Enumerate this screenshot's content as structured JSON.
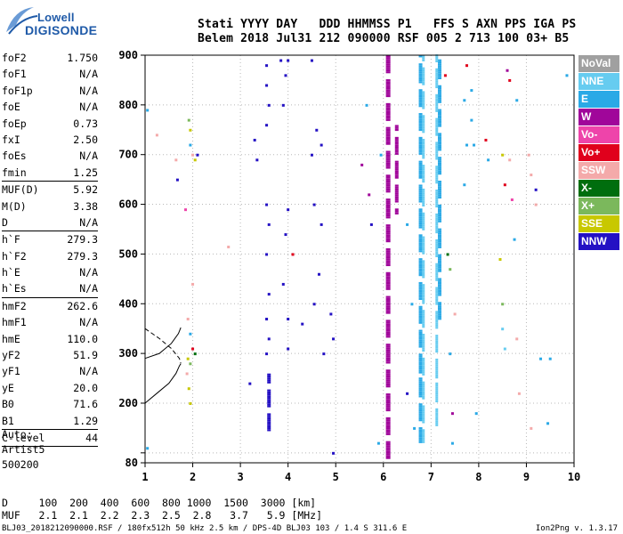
{
  "header": {
    "line1": "Stati YYYY DAY   DDD HHMMSS P1   FFS S AXN PPS IGA PS",
    "line2": "Belem 2018 Jul31 212 090000 RSF 005 2 713 100 03+ B5"
  },
  "logo": {
    "line1": "Lowell",
    "line2": "DIGISONDE"
  },
  "params": [
    {
      "label": "foF2",
      "value": "1.750"
    },
    {
      "label": "foF1",
      "value": "N/A"
    },
    {
      "label": "foF1p",
      "value": "N/A"
    },
    {
      "label": "foE",
      "value": "N/A"
    },
    {
      "label": "foEp",
      "value": "0.73"
    },
    {
      "label": "fxI",
      "value": "2.50"
    },
    {
      "label": "foEs",
      "value": "N/A"
    },
    {
      "label": "fmin",
      "value": "1.25",
      "sep": true
    },
    {
      "label": "MUF(D)",
      "value": "5.92"
    },
    {
      "label": "M(D)",
      "value": "3.38"
    },
    {
      "label": "D",
      "value": "N/A",
      "sep": true
    },
    {
      "label": "h`F",
      "value": "279.3"
    },
    {
      "label": "h`F2",
      "value": "279.3"
    },
    {
      "label": "h`E",
      "value": "N/A"
    },
    {
      "label": "h`Es",
      "value": "N/A",
      "sep": true
    },
    {
      "label": "hmF2",
      "value": "262.6"
    },
    {
      "label": "hmF1",
      "value": "N/A"
    },
    {
      "label": "hmE",
      "value": "110.0"
    },
    {
      "label": "yF2",
      "value": "51.9"
    },
    {
      "label": "yF1",
      "value": "N/A"
    },
    {
      "label": "yE",
      "value": "20.0"
    },
    {
      "label": "B0",
      "value": "71.6"
    },
    {
      "label": "B1",
      "value": "1.29",
      "sep": true
    },
    {
      "label": "C-level",
      "value": "44",
      "sep": true
    }
  ],
  "auto": [
    "Auto:",
    "Artist5",
    "500200"
  ],
  "bottom_table": {
    "d_row": "D     100  200  400  600  800 1000  1500  3000 [km]",
    "muf_row": "MUF   2.1  2.1  2.2  2.3  2.5  2.8   3.7   5.9 [MHz]"
  },
  "footer": {
    "file": "BLJ03_2018212090000.RSF / 180fx512h 50 kHz 2.5 km / DPS-4D BLJ03 103 / 1.4 S 311.6 E",
    "version": "Ion2Png v. 1.3.17"
  },
  "legend": [
    {
      "label": "NoVal",
      "color": "#a0a0a0"
    },
    {
      "label": "NNE",
      "color": "#66ccf0"
    },
    {
      "label": "E",
      "color": "#2aa9e6"
    },
    {
      "label": "W",
      "color": "#a0069a"
    },
    {
      "label": "Vo-",
      "color": "#ee44aa"
    },
    {
      "label": "Vo+",
      "color": "#e0001c"
    },
    {
      "label": "SSW",
      "color": "#f4aaaa"
    },
    {
      "label": "X-",
      "color": "#006e0e"
    },
    {
      "label": "X+",
      "color": "#7bb85c"
    },
    {
      "label": "SSE",
      "color": "#c8c800"
    },
    {
      "label": "NNW",
      "color": "#2411c4"
    }
  ],
  "chart_data": {
    "type": "scatter",
    "title": "",
    "xlabel": "",
    "ylabel": "",
    "xlim": [
      1,
      10
    ],
    "ylim": [
      80,
      900
    ],
    "x_ticks": [
      1,
      2,
      3,
      4,
      5,
      6,
      7,
      8,
      9,
      10
    ],
    "y_ticks": [
      80,
      100,
      200,
      300,
      400,
      500,
      600,
      700,
      800,
      900
    ],
    "y_tick_labels": [
      "80",
      "",
      "200",
      "300",
      "400",
      "500",
      "600",
      "700",
      "800",
      "900"
    ],
    "grid": true,
    "legend_position": "right",
    "stripes": [
      {
        "x": 6.1,
        "ymin": 80,
        "ymax": 900,
        "color": "#a0069a",
        "weight": 3
      },
      {
        "x": 6.28,
        "ymin": 580,
        "ymax": 760,
        "color": "#a0069a",
        "weight": 2
      },
      {
        "x": 6.78,
        "ymin": 120,
        "ymax": 900,
        "color": "#2aa9e6",
        "weight": 2
      },
      {
        "x": 6.84,
        "ymin": 120,
        "ymax": 900,
        "color": "#66ccf0",
        "weight": 1
      },
      {
        "x": 7.18,
        "ymin": 360,
        "ymax": 900,
        "color": "#2aa9e6",
        "weight": 2
      },
      {
        "x": 7.12,
        "ymin": 150,
        "ymax": 900,
        "color": "#66ccf0",
        "weight": 1
      },
      {
        "x": 3.6,
        "ymin": 140,
        "ymax": 260,
        "color": "#2411c4",
        "weight": 2
      }
    ],
    "points": [
      {
        "x": 1.05,
        "y": 790,
        "c": "#2aa9e6"
      },
      {
        "x": 1.05,
        "y": 110,
        "c": "#2aa9e6"
      },
      {
        "x": 1.25,
        "y": 740,
        "c": "#f4aaaa"
      },
      {
        "x": 1.65,
        "y": 690,
        "c": "#f4aaaa"
      },
      {
        "x": 1.68,
        "y": 650,
        "c": "#2411c4"
      },
      {
        "x": 1.85,
        "y": 590,
        "c": "#ee44aa"
      },
      {
        "x": 1.92,
        "y": 770,
        "c": "#7bb85c"
      },
      {
        "x": 1.95,
        "y": 750,
        "c": "#c8c800"
      },
      {
        "x": 1.95,
        "y": 720,
        "c": "#2aa9e6"
      },
      {
        "x": 2.0,
        "y": 700,
        "c": "#f4aaaa"
      },
      {
        "x": 2.05,
        "y": 690,
        "c": "#c8c800"
      },
      {
        "x": 2.1,
        "y": 700,
        "c": "#2411c4"
      },
      {
        "x": 1.9,
        "y": 370,
        "c": "#f4aaaa"
      },
      {
        "x": 1.95,
        "y": 340,
        "c": "#2aa9e6"
      },
      {
        "x": 2.0,
        "y": 310,
        "c": "#e0001c"
      },
      {
        "x": 2.05,
        "y": 300,
        "c": "#006e0e"
      },
      {
        "x": 1.9,
        "y": 290,
        "c": "#c8c800"
      },
      {
        "x": 1.95,
        "y": 280,
        "c": "#7bb85c"
      },
      {
        "x": 1.88,
        "y": 260,
        "c": "#f4aaaa"
      },
      {
        "x": 1.92,
        "y": 230,
        "c": "#c8c800"
      },
      {
        "x": 1.95,
        "y": 200,
        "c": "#c8c800"
      },
      {
        "x": 2.0,
        "y": 440,
        "c": "#f4aaaa"
      },
      {
        "x": 2.75,
        "y": 515,
        "c": "#f4aaaa"
      },
      {
        "x": 3.2,
        "y": 240,
        "c": "#2411c4"
      },
      {
        "x": 3.3,
        "y": 730,
        "c": "#2411c4"
      },
      {
        "x": 3.35,
        "y": 690,
        "c": "#2411c4"
      },
      {
        "x": 3.55,
        "y": 880,
        "c": "#2411c4"
      },
      {
        "x": 3.55,
        "y": 840,
        "c": "#2411c4"
      },
      {
        "x": 3.6,
        "y": 800,
        "c": "#2411c4"
      },
      {
        "x": 3.55,
        "y": 760,
        "c": "#2411c4"
      },
      {
        "x": 3.55,
        "y": 600,
        "c": "#2411c4"
      },
      {
        "x": 3.6,
        "y": 560,
        "c": "#2411c4"
      },
      {
        "x": 3.55,
        "y": 500,
        "c": "#2411c4"
      },
      {
        "x": 3.6,
        "y": 420,
        "c": "#2411c4"
      },
      {
        "x": 3.55,
        "y": 370,
        "c": "#2411c4"
      },
      {
        "x": 3.6,
        "y": 330,
        "c": "#2411c4"
      },
      {
        "x": 3.55,
        "y": 300,
        "c": "#2411c4"
      },
      {
        "x": 3.85,
        "y": 890,
        "c": "#2411c4"
      },
      {
        "x": 3.9,
        "y": 800,
        "c": "#2411c4"
      },
      {
        "x": 3.95,
        "y": 860,
        "c": "#2411c4"
      },
      {
        "x": 4.0,
        "y": 890,
        "c": "#2411c4"
      },
      {
        "x": 4.0,
        "y": 590,
        "c": "#2411c4"
      },
      {
        "x": 3.95,
        "y": 540,
        "c": "#2411c4"
      },
      {
        "x": 3.9,
        "y": 440,
        "c": "#2411c4"
      },
      {
        "x": 4.0,
        "y": 370,
        "c": "#2411c4"
      },
      {
        "x": 4.0,
        "y": 310,
        "c": "#2411c4"
      },
      {
        "x": 4.1,
        "y": 500,
        "c": "#e0001c"
      },
      {
        "x": 4.3,
        "y": 360,
        "c": "#2411c4"
      },
      {
        "x": 4.5,
        "y": 890,
        "c": "#2411c4"
      },
      {
        "x": 4.5,
        "y": 700,
        "c": "#2411c4"
      },
      {
        "x": 4.55,
        "y": 600,
        "c": "#2411c4"
      },
      {
        "x": 4.6,
        "y": 750,
        "c": "#2411c4"
      },
      {
        "x": 4.55,
        "y": 400,
        "c": "#2411c4"
      },
      {
        "x": 4.7,
        "y": 720,
        "c": "#2411c4"
      },
      {
        "x": 4.7,
        "y": 560,
        "c": "#2411c4"
      },
      {
        "x": 4.65,
        "y": 460,
        "c": "#2411c4"
      },
      {
        "x": 4.75,
        "y": 300,
        "c": "#2411c4"
      },
      {
        "x": 4.9,
        "y": 380,
        "c": "#2411c4"
      },
      {
        "x": 4.95,
        "y": 330,
        "c": "#2411c4"
      },
      {
        "x": 4.95,
        "y": 100,
        "c": "#2411c4"
      },
      {
        "x": 5.7,
        "y": 620,
        "c": "#a0069a"
      },
      {
        "x": 5.75,
        "y": 560,
        "c": "#2411c4"
      },
      {
        "x": 5.65,
        "y": 800,
        "c": "#2aa9e6"
      },
      {
        "x": 5.55,
        "y": 680,
        "c": "#a0069a"
      },
      {
        "x": 5.95,
        "y": 700,
        "c": "#2aa9e6"
      },
      {
        "x": 5.9,
        "y": 120,
        "c": "#2aa9e6"
      },
      {
        "x": 6.5,
        "y": 560,
        "c": "#2aa9e6"
      },
      {
        "x": 6.6,
        "y": 400,
        "c": "#2aa9e6"
      },
      {
        "x": 6.5,
        "y": 220,
        "c": "#2411c4"
      },
      {
        "x": 6.65,
        "y": 150,
        "c": "#2aa9e6"
      },
      {
        "x": 7.3,
        "y": 860,
        "c": "#e0001c"
      },
      {
        "x": 7.35,
        "y": 500,
        "c": "#006e0e"
      },
      {
        "x": 7.4,
        "y": 470,
        "c": "#7bb85c"
      },
      {
        "x": 7.5,
        "y": 380,
        "c": "#f4aaaa"
      },
      {
        "x": 7.4,
        "y": 300,
        "c": "#2aa9e6"
      },
      {
        "x": 7.45,
        "y": 180,
        "c": "#a0069a"
      },
      {
        "x": 7.45,
        "y": 120,
        "c": "#2aa9e6"
      },
      {
        "x": 7.7,
        "y": 810,
        "c": "#2aa9e6"
      },
      {
        "x": 7.75,
        "y": 880,
        "c": "#e0001c"
      },
      {
        "x": 7.75,
        "y": 720,
        "c": "#2aa9e6"
      },
      {
        "x": 7.7,
        "y": 640,
        "c": "#2aa9e6"
      },
      {
        "x": 7.85,
        "y": 830,
        "c": "#2aa9e6"
      },
      {
        "x": 7.85,
        "y": 770,
        "c": "#2aa9e6"
      },
      {
        "x": 7.9,
        "y": 720,
        "c": "#2aa9e6"
      },
      {
        "x": 7.95,
        "y": 180,
        "c": "#2aa9e6"
      },
      {
        "x": 8.15,
        "y": 730,
        "c": "#e0001c"
      },
      {
        "x": 8.2,
        "y": 690,
        "c": "#2aa9e6"
      },
      {
        "x": 8.45,
        "y": 490,
        "c": "#c8c800"
      },
      {
        "x": 8.5,
        "y": 400,
        "c": "#7bb85c"
      },
      {
        "x": 8.5,
        "y": 350,
        "c": "#66ccf0"
      },
      {
        "x": 8.55,
        "y": 310,
        "c": "#66ccf0"
      },
      {
        "x": 8.5,
        "y": 700,
        "c": "#c8c800"
      },
      {
        "x": 8.55,
        "y": 640,
        "c": "#e0001c"
      },
      {
        "x": 8.6,
        "y": 870,
        "c": "#a0069a"
      },
      {
        "x": 8.65,
        "y": 850,
        "c": "#e0001c"
      },
      {
        "x": 8.65,
        "y": 690,
        "c": "#f4aaaa"
      },
      {
        "x": 8.7,
        "y": 610,
        "c": "#ee44aa"
      },
      {
        "x": 8.75,
        "y": 530,
        "c": "#2aa9e6"
      },
      {
        "x": 8.8,
        "y": 810,
        "c": "#2aa9e6"
      },
      {
        "x": 8.8,
        "y": 330,
        "c": "#f4aaaa"
      },
      {
        "x": 8.85,
        "y": 220,
        "c": "#f4aaaa"
      },
      {
        "x": 9.05,
        "y": 700,
        "c": "#f4aaaa"
      },
      {
        "x": 9.1,
        "y": 660,
        "c": "#f4aaaa"
      },
      {
        "x": 9.2,
        "y": 600,
        "c": "#f4aaaa"
      },
      {
        "x": 9.2,
        "y": 630,
        "c": "#2411c4"
      },
      {
        "x": 9.1,
        "y": 150,
        "c": "#f4aaaa"
      },
      {
        "x": 9.3,
        "y": 290,
        "c": "#2aa9e6"
      },
      {
        "x": 9.5,
        "y": 290,
        "c": "#2aa9e6"
      },
      {
        "x": 9.45,
        "y": 160,
        "c": "#2aa9e6"
      },
      {
        "x": 9.85,
        "y": 860,
        "c": "#2aa9e6"
      }
    ],
    "curves": [
      {
        "name": "",
        "style": "solid",
        "x": [
          1.0,
          1.25,
          1.5,
          1.65,
          1.72,
          1.75
        ],
        "y": [
          200,
          220,
          240,
          260,
          275,
          279.3
        ]
      },
      {
        "name": "",
        "style": "dashed",
        "x": [
          1.0,
          1.3,
          1.55,
          1.72,
          1.75
        ],
        "y": [
          350,
          330,
          310,
          290,
          280
        ]
      },
      {
        "name": "",
        "style": "solid",
        "x": [
          1.0,
          1.3,
          1.55,
          1.7,
          1.75
        ],
        "y": [
          290,
          300,
          320,
          340,
          352
        ]
      }
    ]
  }
}
